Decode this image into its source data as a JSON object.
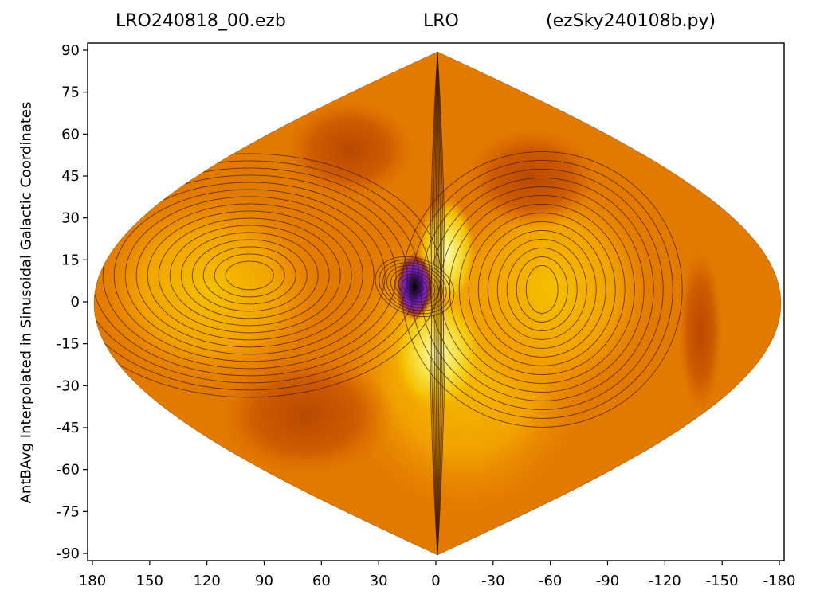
{
  "chart_data": {
    "type": "heatmap",
    "projection": "sinusoidal",
    "title_left": "LRO240818_00.ezb",
    "title_center": "LRO",
    "title_right": "(ezSky240108b.py)",
    "ylabel": "AntBAvg Interpolated in Sinusoidal Galactic Coordinates",
    "xlabel": "",
    "x_ticks": [
      "180",
      "150",
      "120",
      "90",
      "60",
      "30",
      "0",
      "-30",
      "-60",
      "-90",
      "-120",
      "-150",
      "-180"
    ],
    "y_ticks": [
      "90",
      "75",
      "60",
      "45",
      "30",
      "15",
      "0",
      "-15",
      "-30",
      "-45",
      "-60",
      "-75",
      "-90"
    ],
    "xlim": [
      180,
      -180
    ],
    "ylim": [
      -90,
      90
    ],
    "colormap": [
      "#000000",
      "#2a0a6e",
      "#7a1fd6",
      "#a23a3a",
      "#c65200",
      "#de6e00",
      "#ec8800",
      "#f2a200",
      "#f5c000",
      "#f7e34a",
      "#fbfbb0"
    ],
    "peak": {
      "lon": 12,
      "lat": 6
    },
    "grid": false,
    "contours": true,
    "legend": "none"
  }
}
